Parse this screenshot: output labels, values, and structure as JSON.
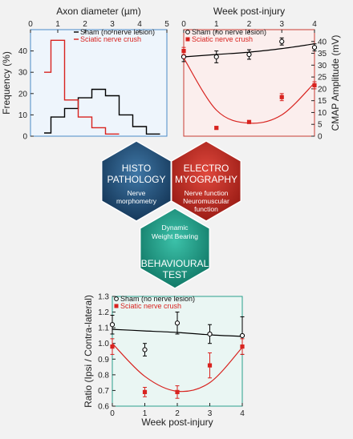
{
  "chart_data": [
    {
      "type": "line",
      "title": "",
      "xlabel": "Axon diameter (µm)",
      "ylabel": "Frequency (%)",
      "xlim": [
        0,
        5
      ],
      "ylim": [
        0,
        50
      ],
      "xticks": [
        "0",
        "1",
        "2",
        "3",
        "4",
        "5"
      ],
      "yticks": [
        "0",
        "10",
        "20",
        "30",
        "40"
      ],
      "legend_position": "top-right",
      "series": [
        {
          "name": "Sham (no nerve lesion)",
          "color": "#000000",
          "x": [
            0.5,
            0.75,
            0.75,
            1.25,
            1.25,
            1.75,
            1.75,
            2.25,
            2.25,
            2.75,
            2.75,
            3.25,
            3.25,
            3.75,
            3.75,
            4.25,
            4.25,
            4.75
          ],
          "y": [
            1.5,
            1.5,
            9,
            9,
            13,
            13,
            18,
            18,
            22,
            22,
            19,
            19,
            10,
            10,
            4.5,
            4.5,
            1,
            1
          ]
        },
        {
          "name": "Sciatic nerve crush",
          "color": "#d8231f",
          "x": [
            0.5,
            0.75,
            0.75,
            1.25,
            1.25,
            1.75,
            1.75,
            2.25,
            2.25,
            2.75,
            2.75,
            3.25
          ],
          "y": [
            30,
            30,
            45,
            45,
            17,
            17,
            9,
            9,
            4,
            4,
            1,
            1
          ]
        }
      ]
    },
    {
      "type": "scatter",
      "title": "",
      "xlabel": "Week post-injury",
      "ylabel": "CMAP Amplitude (mV)",
      "xlim": [
        0,
        4
      ],
      "ylim": [
        0,
        45
      ],
      "xticks": [
        "0",
        "1",
        "2",
        "3",
        "4"
      ],
      "yticks": [
        "0",
        "5",
        "10",
        "15",
        "20",
        "25",
        "30",
        "35",
        "40"
      ],
      "legend_position": "top-left",
      "series": [
        {
          "name": "Sham (no nerve lesion)",
          "color": "#000000",
          "marker": "open-circle",
          "x": [
            0,
            1,
            2,
            3,
            4
          ],
          "y": [
            33.5,
            33.5,
            34.5,
            40,
            37.5
          ],
          "err": [
            2,
            2.5,
            2,
            1.5,
            1.5
          ],
          "fit": [
            33.5,
            34.5,
            35.5,
            37,
            39
          ]
        },
        {
          "name": "Sciatic nerve crush",
          "color": "#d8231f",
          "marker": "filled-square",
          "x": [
            0,
            1,
            2,
            3,
            4
          ],
          "y": [
            36,
            3.5,
            6,
            16.5,
            21.5
          ],
          "err": [
            1.5,
            0.5,
            0.5,
            1.5,
            1.5
          ],
          "fit": [
            33,
            11,
            5.5,
            9,
            22.5
          ]
        }
      ]
    },
    {
      "type": "scatter",
      "title": "",
      "xlabel": "Week post-injury",
      "ylabel": "Ratio (Ipsi / Contra-lateral)",
      "xlim": [
        0,
        4
      ],
      "ylim": [
        0.6,
        1.3
      ],
      "xticks": [
        "0",
        "1",
        "2",
        "3",
        "4"
      ],
      "yticks": [
        "0.6",
        "0.7",
        "0.8",
        "0.9",
        "1.0",
        "1.1",
        "1.2",
        "1.3"
      ],
      "legend_position": "top-left",
      "series": [
        {
          "name": "Sham (no nerve lesion)",
          "color": "#000000",
          "marker": "open-circle",
          "x": [
            0,
            1,
            2,
            3,
            4
          ],
          "y": [
            1.12,
            0.96,
            1.13,
            1.06,
            1.05
          ],
          "err": [
            0.06,
            0.04,
            0.07,
            0.06,
            0.12
          ],
          "fit": [
            1.09,
            1.08,
            1.07,
            1.055,
            1.045
          ]
        },
        {
          "name": "Sciatic nerve crush",
          "color": "#d8231f",
          "marker": "filled-square",
          "x": [
            0,
            1,
            2,
            3,
            4
          ],
          "y": [
            0.98,
            0.69,
            0.69,
            0.86,
            0.98
          ],
          "err": [
            0.05,
            0.03,
            0.04,
            0.08,
            0.05
          ],
          "fit": [
            1.0,
            0.79,
            0.695,
            0.75,
            0.975
          ]
        }
      ]
    }
  ],
  "hexagons": [
    {
      "id": "histopathology",
      "title_lines": [
        "HISTO",
        "PATHOLOGY"
      ],
      "sub_lines": [
        "Nerve",
        "morphometry"
      ],
      "color": "#1e4a72"
    },
    {
      "id": "electromyography",
      "title_lines": [
        "ELECTRO",
        "MYOGRAPHY"
      ],
      "sub_lines": [
        "Nerve function",
        "Neuromuscular",
        "function"
      ],
      "color": "#c42a22"
    },
    {
      "id": "behavioural",
      "title_lines": [
        "BEHAVIOURAL",
        "TEST"
      ],
      "sub_lines": [
        "Dynamic",
        "Weight Bearing"
      ],
      "color": "#1a9a85"
    }
  ]
}
